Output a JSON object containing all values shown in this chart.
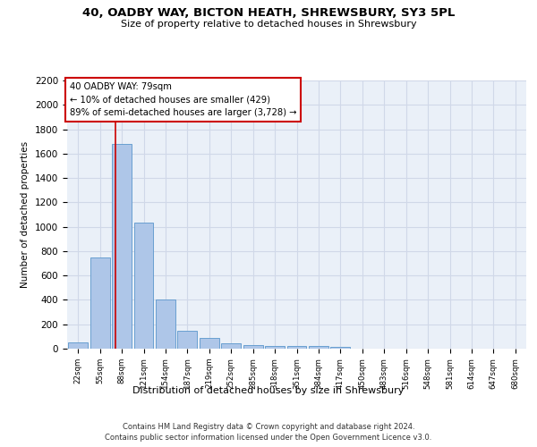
{
  "title_line1": "40, OADBY WAY, BICTON HEATH, SHREWSBURY, SY3 5PL",
  "title_line2": "Size of property relative to detached houses in Shrewsbury",
  "xlabel": "Distribution of detached houses by size in Shrewsbury",
  "ylabel": "Number of detached properties",
  "categories": [
    "22sqm",
    "55sqm",
    "88sqm",
    "121sqm",
    "154sqm",
    "187sqm",
    "219sqm",
    "252sqm",
    "285sqm",
    "318sqm",
    "351sqm",
    "384sqm",
    "417sqm",
    "450sqm",
    "483sqm",
    "516sqm",
    "548sqm",
    "581sqm",
    "614sqm",
    "647sqm",
    "680sqm"
  ],
  "values": [
    50,
    750,
    1680,
    1035,
    405,
    150,
    85,
    45,
    30,
    25,
    20,
    20,
    18,
    0,
    0,
    0,
    0,
    0,
    0,
    0,
    0
  ],
  "bar_color": "#aec6e8",
  "bar_edge_color": "#5a96cc",
  "highlight_line_color": "#cc0000",
  "annotation_text": "40 OADBY WAY: 79sqm\n← 10% of detached houses are smaller (429)\n89% of semi-detached houses are larger (3,728) →",
  "annotation_box_color": "#ffffff",
  "annotation_box_edge_color": "#cc0000",
  "ylim": [
    0,
    2200
  ],
  "yticks": [
    0,
    200,
    400,
    600,
    800,
    1000,
    1200,
    1400,
    1600,
    1800,
    2000,
    2200
  ],
  "grid_color": "#d0d8e8",
  "background_color": "#eaf0f8",
  "footer_line1": "Contains HM Land Registry data © Crown copyright and database right 2024.",
  "footer_line2": "Contains public sector information licensed under the Open Government Licence v3.0."
}
